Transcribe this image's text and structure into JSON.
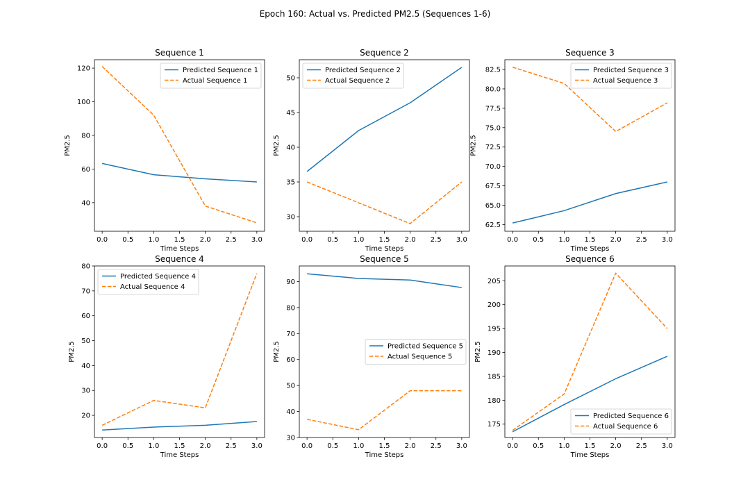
{
  "figure": {
    "title": "Epoch 160: Actual vs. Predicted PM2.5 (Sequences 1-6)"
  },
  "colors": {
    "predicted": "#1f77b4",
    "actual": "#ff7f0e"
  },
  "chart_data": [
    {
      "type": "line",
      "title": "Sequence 1",
      "xlabel": "Time Steps",
      "ylabel": "PM2.5",
      "x": [
        0,
        1,
        2,
        3
      ],
      "xlim": [
        -0.15,
        3.15
      ],
      "ylim": [
        23,
        125
      ],
      "xticks": [
        0,
        0.5,
        1,
        1.5,
        2,
        2.5,
        3
      ],
      "xtick_labels": [
        "0.0",
        "0.5",
        "1.0",
        "1.5",
        "2.0",
        "2.5",
        "3.0"
      ],
      "yticks": [
        40,
        60,
        80,
        100,
        120
      ],
      "ytick_labels": [
        "40",
        "60",
        "80",
        "100",
        "120"
      ],
      "legend_position": "top-right",
      "series": [
        {
          "name": "Predicted Sequence 1",
          "style": "solid",
          "color": "#1f77b4",
          "values": [
            63.3,
            56.6,
            54.2,
            52.3
          ]
        },
        {
          "name": "Actual Sequence 1",
          "style": "dashed",
          "color": "#ff7f0e",
          "values": [
            121,
            92,
            38,
            28
          ]
        }
      ]
    },
    {
      "type": "line",
      "title": "Sequence 2",
      "xlabel": "Time Steps",
      "ylabel": "PM2.5",
      "x": [
        0,
        1,
        2,
        3
      ],
      "xlim": [
        -0.15,
        3.15
      ],
      "ylim": [
        27.9,
        52.6
      ],
      "xticks": [
        0,
        0.5,
        1,
        1.5,
        2,
        2.5,
        3
      ],
      "xtick_labels": [
        "0.0",
        "0.5",
        "1.0",
        "1.5",
        "2.0",
        "2.5",
        "3.0"
      ],
      "yticks": [
        30,
        35,
        40,
        45,
        50
      ],
      "ytick_labels": [
        "30",
        "35",
        "40",
        "45",
        "50"
      ],
      "legend_position": "top-left",
      "series": [
        {
          "name": "Predicted Sequence 2",
          "style": "solid",
          "color": "#1f77b4",
          "values": [
            36.5,
            42.4,
            46.4,
            51.5
          ]
        },
        {
          "name": "Actual Sequence 2",
          "style": "dashed",
          "color": "#ff7f0e",
          "values": [
            35,
            32,
            29,
            35
          ]
        }
      ]
    },
    {
      "type": "line",
      "title": "Sequence 3",
      "xlabel": "Time Steps",
      "ylabel": "PM2.5",
      "x": [
        0,
        1,
        2,
        3
      ],
      "xlim": [
        -0.15,
        3.15
      ],
      "ylim": [
        61.64,
        83.76
      ],
      "xticks": [
        0,
        0.5,
        1,
        1.5,
        2,
        2.5,
        3
      ],
      "xtick_labels": [
        "0.0",
        "0.5",
        "1.0",
        "1.5",
        "2.0",
        "2.5",
        "3.0"
      ],
      "yticks": [
        62.5,
        65,
        67.5,
        70,
        72.5,
        75,
        77.5,
        80,
        82.5
      ],
      "ytick_labels": [
        "62.5",
        "65.0",
        "67.5",
        "70.0",
        "72.5",
        "75.0",
        "77.5",
        "80.0",
        "82.5"
      ],
      "legend_position": "top-right",
      "series": [
        {
          "name": "Predicted Sequence 3",
          "style": "solid",
          "color": "#1f77b4",
          "values": [
            62.7,
            64.3,
            66.5,
            68.0
          ]
        },
        {
          "name": "Actual Sequence 3",
          "style": "dashed",
          "color": "#ff7f0e",
          "values": [
            82.8,
            80.7,
            74.5,
            78.2
          ]
        }
      ]
    },
    {
      "type": "line",
      "title": "Sequence 4",
      "xlabel": "Time Steps",
      "ylabel": "PM2.5",
      "x": [
        0,
        1,
        2,
        3
      ],
      "xlim": [
        -0.15,
        3.15
      ],
      "ylim": [
        11.1,
        80
      ],
      "xticks": [
        0,
        0.5,
        1,
        1.5,
        2,
        2.5,
        3
      ],
      "xtick_labels": [
        "0.0",
        "0.5",
        "1.0",
        "1.5",
        "2.0",
        "2.5",
        "3.0"
      ],
      "yticks": [
        20,
        30,
        40,
        50,
        60,
        70,
        80
      ],
      "ytick_labels": [
        "20",
        "30",
        "40",
        "50",
        "60",
        "70",
        "80"
      ],
      "legend_position": "top-left",
      "series": [
        {
          "name": "Predicted Sequence 4",
          "style": "solid",
          "color": "#1f77b4",
          "values": [
            14.1,
            15.3,
            16.0,
            17.5
          ]
        },
        {
          "name": "Actual Sequence 4",
          "style": "dashed",
          "color": "#ff7f0e",
          "values": [
            16,
            26,
            23,
            77
          ]
        }
      ]
    },
    {
      "type": "line",
      "title": "Sequence 5",
      "xlabel": "Time Steps",
      "ylabel": "PM2.5",
      "x": [
        0,
        1,
        2,
        3
      ],
      "xlim": [
        -0.15,
        3.15
      ],
      "ylim": [
        30,
        96
      ],
      "xticks": [
        0,
        0.5,
        1,
        1.5,
        2,
        2.5,
        3
      ],
      "xtick_labels": [
        "0.0",
        "0.5",
        "1.0",
        "1.5",
        "2.0",
        "2.5",
        "3.0"
      ],
      "yticks": [
        30,
        40,
        50,
        60,
        70,
        80,
        90
      ],
      "ytick_labels": [
        "30",
        "40",
        "50",
        "60",
        "70",
        "80",
        "90"
      ],
      "legend_position": "center-right",
      "series": [
        {
          "name": "Predicted Sequence 5",
          "style": "solid",
          "color": "#1f77b4",
          "values": [
            93.0,
            91.2,
            90.6,
            87.7
          ]
        },
        {
          "name": "Actual Sequence 5",
          "style": "dashed",
          "color": "#ff7f0e",
          "values": [
            37,
            33,
            48,
            48
          ]
        }
      ]
    },
    {
      "type": "line",
      "title": "Sequence 6",
      "xlabel": "Time Steps",
      "ylabel": "PM2.5",
      "x": [
        0,
        1,
        2,
        3
      ],
      "xlim": [
        -0.15,
        3.15
      ],
      "ylim": [
        172.2,
        208.1
      ],
      "xticks": [
        0,
        0.5,
        1,
        1.5,
        2,
        2.5,
        3
      ],
      "xtick_labels": [
        "0.0",
        "0.5",
        "1.0",
        "1.5",
        "2.0",
        "2.5",
        "3.0"
      ],
      "yticks": [
        175,
        180,
        185,
        190,
        195,
        200,
        205
      ],
      "ytick_labels": [
        "175",
        "180",
        "185",
        "190",
        "195",
        "200",
        "205"
      ],
      "legend_position": "bottom-right",
      "series": [
        {
          "name": "Predicted Sequence 6",
          "style": "solid",
          "color": "#1f77b4",
          "values": [
            173.4,
            179.1,
            184.5,
            189.2
          ]
        },
        {
          "name": "Actual Sequence 6",
          "style": "dashed",
          "color": "#ff7f0e",
          "values": [
            173.7,
            181.3,
            206.6,
            195.0
          ]
        }
      ]
    }
  ]
}
